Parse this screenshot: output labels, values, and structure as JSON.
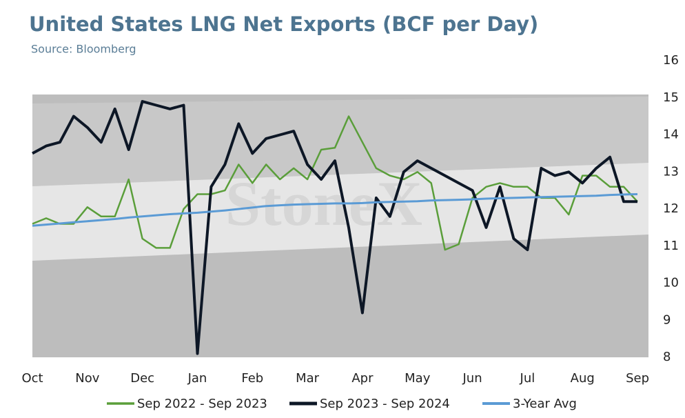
{
  "chart_data": {
    "type": "line",
    "title": "United States LNG Net Exports (BCF per Day)",
    "subtitle": "Source: Bloomberg",
    "watermark": "StoneX",
    "x": [
      0,
      0.25,
      0.5,
      0.75,
      1,
      1.25,
      1.5,
      1.75,
      2,
      2.25,
      2.5,
      2.75,
      3,
      3.25,
      3.5,
      3.75,
      4,
      4.25,
      4.5,
      4.75,
      5,
      5.25,
      5.5,
      5.75,
      6,
      6.25,
      6.5,
      6.75,
      7,
      7.25,
      7.5,
      7.75,
      8,
      8.25,
      8.5,
      8.75,
      9,
      9.25,
      9.5,
      9.75,
      10,
      10.25,
      10.5,
      10.75,
      11
    ],
    "xlim": [
      0,
      11.2
    ],
    "xticks": [
      {
        "value": 0,
        "label": "Oct"
      },
      {
        "value": 1,
        "label": "Nov"
      },
      {
        "value": 2,
        "label": "Dec"
      },
      {
        "value": 3,
        "label": "Jan"
      },
      {
        "value": 4,
        "label": "Feb"
      },
      {
        "value": 5,
        "label": "Mar"
      },
      {
        "value": 6,
        "label": "Apr"
      },
      {
        "value": 7,
        "label": "May"
      },
      {
        "value": 8,
        "label": "Jun"
      },
      {
        "value": 9,
        "label": "Jul"
      },
      {
        "value": 10,
        "label": "Aug"
      },
      {
        "value": 11,
        "label": "Sep"
      }
    ],
    "ylim": [
      8,
      16
    ],
    "yticks": [
      8,
      9,
      10,
      11,
      12,
      13,
      14,
      15,
      16
    ],
    "series": [
      {
        "name": "Sep 2022 - Sep 2023",
        "color": "#5a9e3a",
        "width": 2.5,
        "values": [
          11.6,
          11.75,
          11.6,
          11.6,
          12.05,
          11.8,
          11.8,
          12.8,
          11.2,
          10.95,
          10.95,
          12.0,
          12.4,
          12.4,
          12.5,
          13.2,
          12.7,
          13.2,
          12.8,
          13.1,
          12.8,
          13.6,
          13.65,
          14.5,
          13.8,
          13.1,
          12.9,
          12.8,
          13.0,
          12.7,
          10.9,
          11.05,
          12.3,
          12.6,
          12.7,
          12.6,
          12.6,
          12.3,
          12.3,
          11.85,
          12.9,
          12.9,
          12.6,
          12.6,
          12.2
        ]
      },
      {
        "name": "Sep 2023 - Sep 2024",
        "color": "#0d1726",
        "width": 4,
        "values": [
          13.5,
          13.7,
          13.8,
          14.5,
          14.2,
          13.8,
          14.7,
          13.6,
          14.9,
          14.8,
          14.7,
          14.8,
          8.1,
          12.6,
          13.2,
          14.3,
          13.5,
          13.9,
          14.0,
          14.1,
          13.2,
          12.8,
          13.3,
          11.5,
          9.2,
          12.3,
          11.8,
          13.0,
          13.3,
          13.1,
          12.9,
          12.7,
          12.5,
          11.5,
          12.6,
          11.2,
          10.9,
          13.1,
          12.9,
          13.0,
          12.7,
          13.1,
          13.4,
          12.2,
          12.2
        ]
      },
      {
        "name": "3-Year Avg",
        "color": "#5b9bd5",
        "width": 3,
        "values": [
          11.55,
          11.58,
          11.61,
          11.64,
          11.67,
          11.7,
          11.73,
          11.77,
          11.8,
          11.83,
          11.86,
          11.88,
          11.9,
          11.93,
          11.96,
          12.0,
          12.04,
          12.08,
          12.1,
          12.12,
          12.13,
          12.14,
          12.15,
          12.15,
          12.16,
          12.18,
          12.19,
          12.2,
          12.21,
          12.23,
          12.24,
          12.25,
          12.26,
          12.28,
          12.29,
          12.3,
          12.31,
          12.32,
          12.33,
          12.34,
          12.35,
          12.36,
          12.38,
          12.39,
          12.4
        ]
      }
    ]
  }
}
